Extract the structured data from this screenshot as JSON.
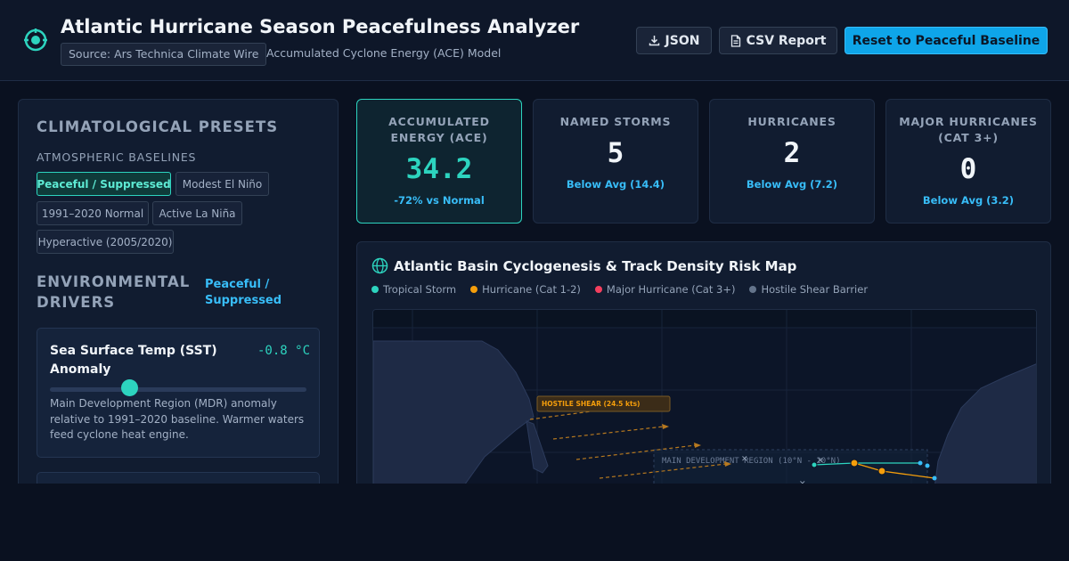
{
  "header": {
    "title": "Atlantic Hurricane Season Peacefulness Analyzer",
    "source_badge": "Source: Ars Technica Climate Wire",
    "model_label": "Accumulated Cyclone Energy (ACE) Model",
    "buttons": {
      "json": "JSON",
      "csv": "CSV Report",
      "reset": "Reset to Peaceful Baseline"
    }
  },
  "presets": {
    "title": "CLIMATOLOGICAL PRESETS",
    "subtitle": "ATMOSPHERIC BASELINES",
    "chips": [
      {
        "label": "Peaceful / Suppressed",
        "active": true
      },
      {
        "label": "Modest El Niño",
        "active": false
      },
      {
        "label": "1991–2020 Normal",
        "active": false
      },
      {
        "label": "Active La Niña",
        "active": false
      },
      {
        "label": "Hyperactive (2005/2020)",
        "active": false
      }
    ]
  },
  "drivers": {
    "title": "ENVIRONMENTAL DRIVERS",
    "state": "Peaceful / Suppressed",
    "sst": {
      "name": "Sea Surface Temp (SST) Anomaly",
      "value": "-0.8 °C",
      "slider_level": 0.31,
      "description": "Main Development Region (MDR) anomaly relative to 1991–2020 baseline. Warmer waters feed cyclone heat engine."
    }
  },
  "stats": [
    {
      "label": "ACCUMULATED ENERGY (ACE)",
      "value": "34.2",
      "foot": "-72% vs Normal"
    },
    {
      "label": "NAMED STORMS",
      "value": "5",
      "foot": "Below Avg (14.4)"
    },
    {
      "label": "HURRICANES",
      "value": "2",
      "foot": "Below Avg (7.2)"
    },
    {
      "label": "MAJOR HURRICANES (CAT 3+)",
      "value": "0",
      "foot": "Below Avg (3.2)"
    }
  ],
  "map": {
    "title": "Atlantic Basin Cyclogenesis & Track Density Risk Map",
    "legend": [
      {
        "label": "Tropical Storm",
        "color": "#2dd4bf"
      },
      {
        "label": "Hurricane (Cat 1-2)",
        "color": "#f59e0b"
      },
      {
        "label": "Major Hurricane (Cat 3+)",
        "color": "#f43f5e"
      },
      {
        "label": "Hostile Shear Barrier",
        "color": "#64748b"
      }
    ],
    "shear_label": "HOSTILE SHEAR (24.5 kts)",
    "mdr_label": "MAIN DEVELOPMENT REGION (10°N - 20°N)"
  },
  "colors": {
    "accent": "#2dd4bf",
    "info": "#38bdf8",
    "warning": "#f59e0b",
    "danger": "#f43f5e"
  }
}
